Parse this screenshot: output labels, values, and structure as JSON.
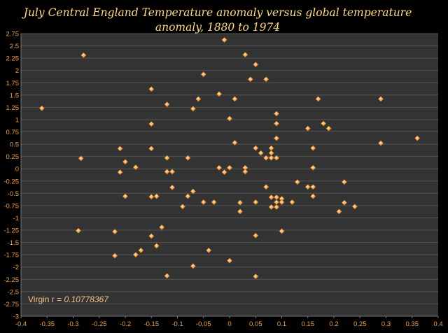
{
  "chart_data": {
    "type": "scatter",
    "title_lines": [
      "July Central England Temperature anomaly versus global temperature",
      "anomaly, 1880 to 1974"
    ],
    "xlabel": "",
    "ylabel": "",
    "xlim": [
      -0.4,
      0.4
    ],
    "ylim": [
      -3,
      2.75
    ],
    "x_ticks": [
      "-0.4",
      "-0.35",
      "-0.3",
      "-0.25",
      "-0.2",
      "-0.15",
      "-0.1",
      "-0.05",
      "0",
      "0.05",
      "0.1",
      "0.15",
      "0.2",
      "0.25",
      "0.3",
      "0.35",
      "0.4"
    ],
    "y_ticks": [
      "2.75",
      "2.5",
      "2.25",
      "2",
      "1.75",
      "1.5",
      "1.25",
      "1",
      "0.75",
      "0.5",
      "0.25",
      "0",
      "-0.25",
      "-0.5",
      "-0.75",
      "-1",
      "-1.25",
      "-1.5",
      "-1.75",
      "-2",
      "-2.25",
      "-2.5",
      "-2.75",
      "-3"
    ],
    "grid": "horizontal",
    "annotation": {
      "label": "Virgin r = ",
      "value": "0.10778367"
    },
    "colors": {
      "background": "#000000",
      "plot_area": "#333333",
      "grid": "#555555",
      "marker": "#f4a23c",
      "marker_highlight": "#ffe2a8"
    },
    "points": [
      [
        -0.36,
        1.23
      ],
      [
        -0.28,
        2.31
      ],
      [
        -0.285,
        0.21
      ],
      [
        -0.29,
        -1.26
      ],
      [
        -0.22,
        -1.28
      ],
      [
        -0.22,
        -1.77
      ],
      [
        -0.21,
        0.41
      ],
      [
        -0.21,
        -0.07
      ],
      [
        -0.2,
        0.14
      ],
      [
        -0.2,
        -0.56
      ],
      [
        -0.18,
        0.03
      ],
      [
        -0.18,
        -1.75
      ],
      [
        -0.17,
        -1.66
      ],
      [
        -0.15,
        1.62
      ],
      [
        -0.15,
        0.91
      ],
      [
        -0.15,
        0.41
      ],
      [
        -0.15,
        -0.57
      ],
      [
        -0.15,
        -1.37
      ],
      [
        -0.14,
        -0.56
      ],
      [
        -0.14,
        -1.57
      ],
      [
        -0.13,
        -1.19
      ],
      [
        -0.12,
        1.31
      ],
      [
        -0.12,
        0.22
      ],
      [
        -0.12,
        -0.06
      ],
      [
        -0.12,
        -2.18
      ],
      [
        -0.11,
        -0.06
      ],
      [
        -0.11,
        -0.38
      ],
      [
        -0.09,
        -0.77
      ],
      [
        -0.08,
        0.22
      ],
      [
        -0.08,
        -0.56
      ],
      [
        -0.07,
        1.22
      ],
      [
        -0.07,
        -0.46
      ],
      [
        -0.07,
        -1.98
      ],
      [
        -0.06,
        1.42
      ],
      [
        -0.05,
        1.92
      ],
      [
        -0.05,
        -0.68
      ],
      [
        -0.04,
        -1.66
      ],
      [
        -0.03,
        -0.68
      ],
      [
        -0.02,
        1.52
      ],
      [
        -0.02,
        0.02
      ],
      [
        -0.01,
        2.62
      ],
      [
        -0.01,
        -0.07
      ],
      [
        0.0,
        1.02
      ],
      [
        0.0,
        0.02
      ],
      [
        0.0,
        -1.87
      ],
      [
        0.01,
        1.42
      ],
      [
        0.01,
        0.53
      ],
      [
        0.02,
        -0.69
      ],
      [
        0.02,
        -0.87
      ],
      [
        0.03,
        2.32
      ],
      [
        0.03,
        0.02
      ],
      [
        0.03,
        -0.06
      ],
      [
        0.04,
        1.82
      ],
      [
        0.05,
        2.12
      ],
      [
        0.05,
        0.42
      ],
      [
        0.05,
        -0.68
      ],
      [
        0.05,
        -1.36
      ],
      [
        0.05,
        -2.19
      ],
      [
        0.06,
        0.32
      ],
      [
        0.07,
        1.82
      ],
      [
        0.07,
        0.22
      ],
      [
        0.07,
        -0.37
      ],
      [
        0.08,
        0.42
      ],
      [
        0.08,
        0.32
      ],
      [
        0.08,
        0.22
      ],
      [
        0.08,
        -0.58
      ],
      [
        0.08,
        -0.78
      ],
      [
        0.09,
        1.12
      ],
      [
        0.09,
        0.92
      ],
      [
        0.09,
        0.62
      ],
      [
        0.09,
        0.22
      ],
      [
        0.09,
        -0.58
      ],
      [
        0.09,
        -0.68
      ],
      [
        0.09,
        -0.78
      ],
      [
        0.1,
        -0.61
      ],
      [
        0.1,
        -0.68
      ],
      [
        0.1,
        -1.27
      ],
      [
        0.12,
        -0.68
      ],
      [
        0.13,
        -0.27
      ],
      [
        0.15,
        0.82
      ],
      [
        0.15,
        -0.37
      ],
      [
        0.16,
        0.42
      ],
      [
        0.16,
        0.02
      ],
      [
        0.16,
        -0.37
      ],
      [
        0.16,
        -0.56
      ],
      [
        0.17,
        1.42
      ],
      [
        0.18,
        0.92
      ],
      [
        0.19,
        0.82
      ],
      [
        0.21,
        -0.87
      ],
      [
        0.22,
        -0.27
      ],
      [
        0.22,
        -0.69
      ],
      [
        0.24,
        -0.77
      ],
      [
        0.29,
        1.42
      ],
      [
        0.29,
        0.52
      ],
      [
        0.36,
        0.62
      ]
    ]
  }
}
